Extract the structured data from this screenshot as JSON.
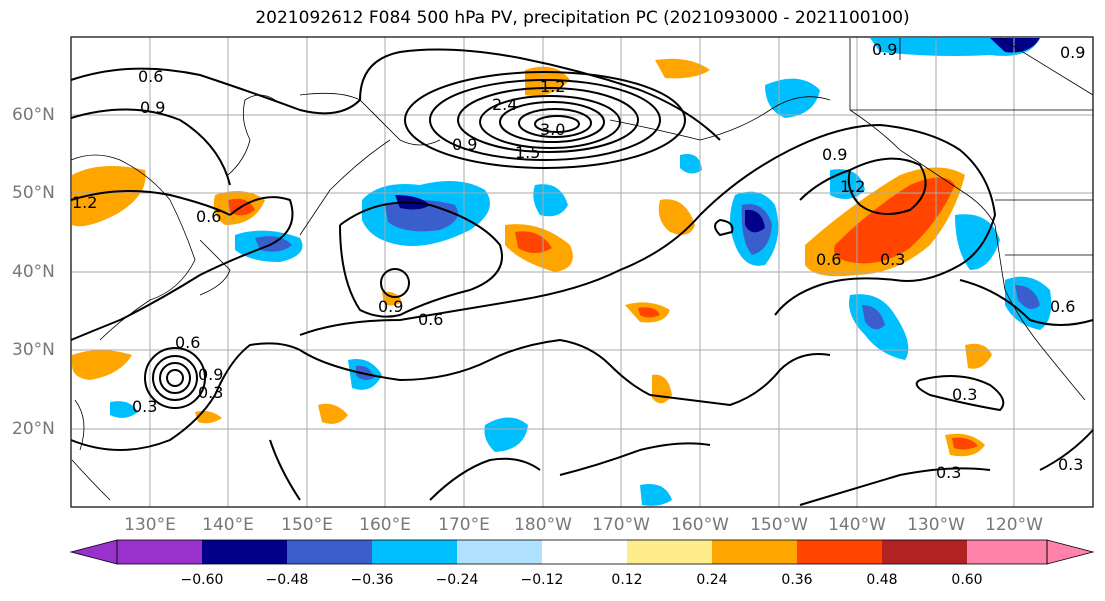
{
  "title": "2021092612 F084 500 hPa PV, precipitation PC (2021093000 - 2021100100)",
  "lon_labels": [
    "130°E",
    "140°E",
    "150°E",
    "160°E",
    "170°E",
    "180°W",
    "170°W",
    "160°W",
    "150°W",
    "140°W",
    "130°W",
    "120°W"
  ],
  "lat_labels": [
    "60°N",
    "50°N",
    "40°N",
    "30°N",
    "20°N"
  ],
  "colorbar": {
    "ticks": [
      "−0.60",
      "−0.48",
      "−0.36",
      "−0.24",
      "−0.12",
      "0.12",
      "0.24",
      "0.36",
      "0.48",
      "0.60"
    ],
    "colors": [
      "#9932cc",
      "#00008b",
      "#3a5fcd",
      "#00bfff",
      "#b0e2ff",
      "#ffffff",
      "#ffec8b",
      "#ffa500",
      "#ff4500",
      "#b22222",
      "#ff82ab"
    ]
  },
  "contour_labels": [
    {
      "text": "0.6"
    },
    {
      "text": "0.9"
    },
    {
      "text": "1.2"
    },
    {
      "text": "0.6"
    },
    {
      "text": "0.9"
    },
    {
      "text": "0.9"
    },
    {
      "text": "1.5"
    },
    {
      "text": "3.0"
    },
    {
      "text": "2.4"
    },
    {
      "text": "1.2"
    },
    {
      "text": "0.9"
    },
    {
      "text": "0.6"
    },
    {
      "text": "0.6"
    },
    {
      "text": "0.3"
    },
    {
      "text": "0.3"
    },
    {
      "text": "0.9"
    },
    {
      "text": "1.2"
    },
    {
      "text": "0.6"
    },
    {
      "text": "0.3"
    },
    {
      "text": "0.6"
    },
    {
      "text": "0.3"
    },
    {
      "text": "0.3"
    },
    {
      "text": "0.3"
    },
    {
      "text": "0.9"
    },
    {
      "text": "0.9"
    }
  ],
  "colors": {
    "positive_strong": "#ff4500",
    "positive_mid": "#ffa500",
    "positive_weak": "#ffec8b",
    "negative_weak": "#b0e2ff",
    "negative_mid": "#00bfff",
    "negative_strong": "#3a5fcd",
    "negative_max": "#00008b"
  }
}
